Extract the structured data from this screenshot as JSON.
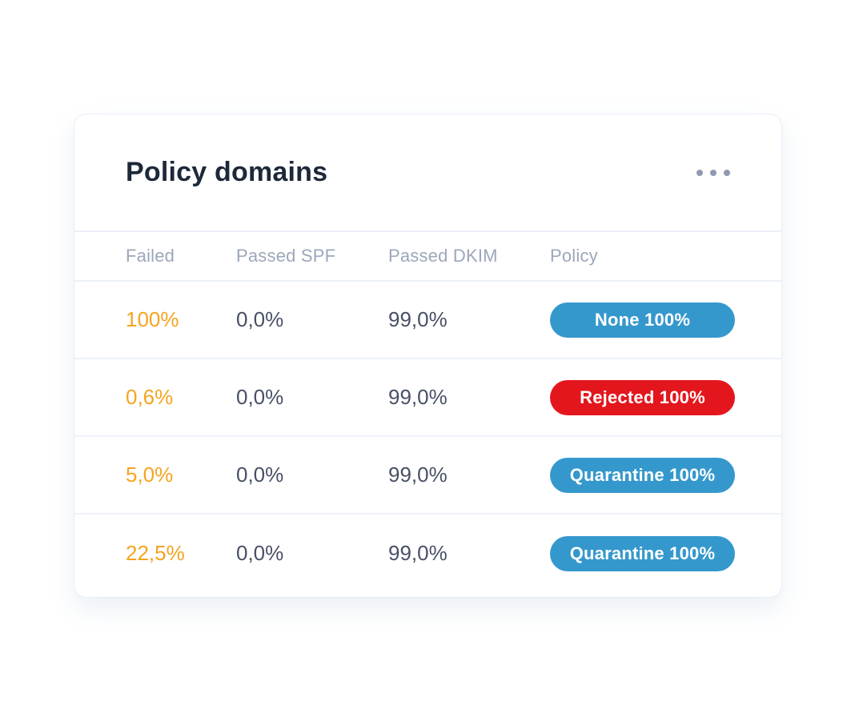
{
  "card": {
    "title": "Policy domains",
    "menu_icon": "ellipsis-icon"
  },
  "table": {
    "columns": [
      "Failed",
      "Passed SPF",
      "Passed DKIM",
      "Policy"
    ],
    "rows": [
      {
        "failed": "100%",
        "passed_spf": "0,0%",
        "passed_dkim": "99,0%",
        "policy_label": "None 100%",
        "policy_color": "#3598cd"
      },
      {
        "failed": "0,6%",
        "passed_spf": "0,0%",
        "passed_dkim": "99,0%",
        "policy_label": "Rejected 100%",
        "policy_color": "#e4161d"
      },
      {
        "failed": "5,0%",
        "passed_spf": "0,0%",
        "passed_dkim": "99,0%",
        "policy_label": "Quarantine 100%",
        "policy_color": "#3598cd"
      },
      {
        "failed": "22,5%",
        "passed_spf": "0,0%",
        "passed_dkim": "99,0%",
        "policy_label": "Quarantine 100%",
        "policy_color": "#3598cd"
      }
    ]
  },
  "colors": {
    "title_text": "#1d2839",
    "header_text": "#9ca7ba",
    "value_text": "#475066",
    "failed_text": "#f5a41f",
    "pill_blue": "#3598cd",
    "pill_red": "#e4161d",
    "card_border": "#e8eef7",
    "row_divider": "#eef2f8",
    "menu_dots": "#8e9ab0"
  }
}
